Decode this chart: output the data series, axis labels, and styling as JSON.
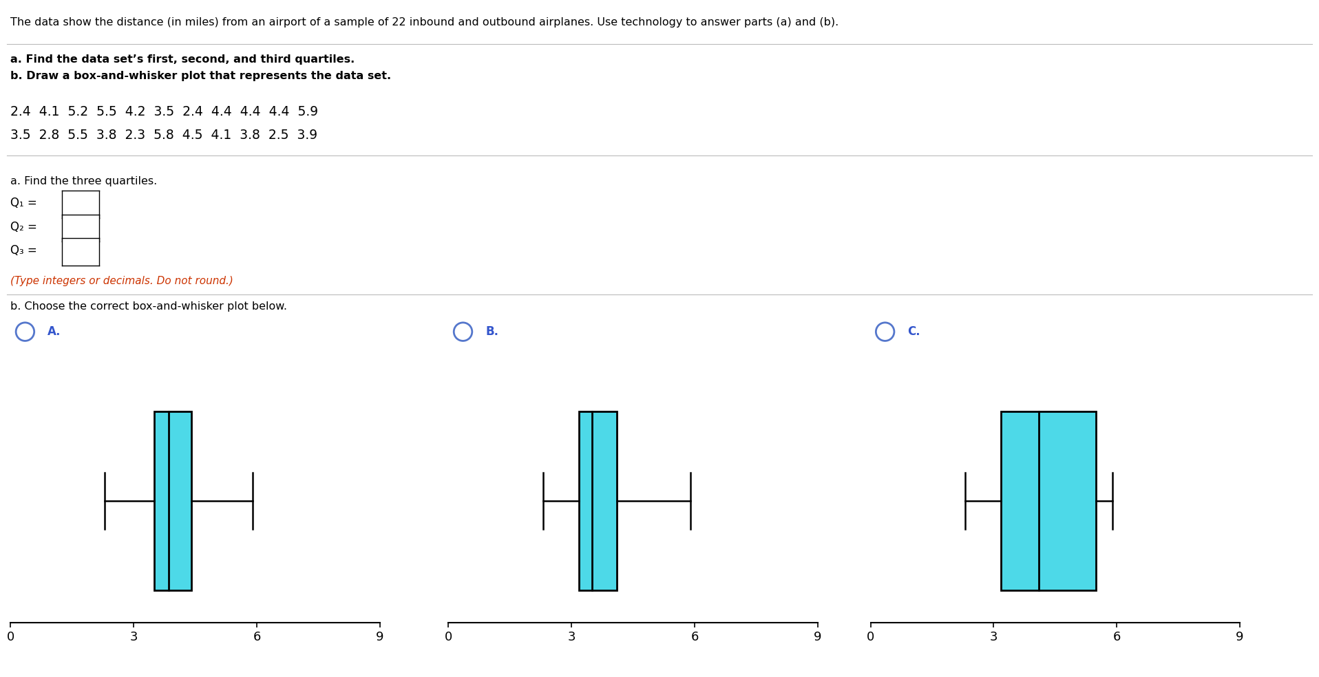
{
  "title_text": "The data show the distance (in miles) from an airport of a sample of 22 inbound and outbound airplanes. Use technology to answer parts (a) and (b).",
  "instruction_a": "a. Find the data set’s first, second, and third quartiles.",
  "instruction_b": "b. Draw a box-and-whisker plot that represents the data set.",
  "data_row1": "2.4  4.1  5.2  5.5  4.2  3.5  2.4  4.4  4.4  4.4  5.9",
  "data_row2": "3.5  2.8  5.5  3.8  2.3  5.8  4.5  4.1  3.8  2.5  3.9",
  "q_labels": [
    "Q₁ =",
    "Q₂ =",
    "Q₃ ="
  ],
  "type_note": "(Type integers or decimals. Do not round.)",
  "part_b_label": "b. Choose the correct box-and-whisker plot below.",
  "find_quartiles_label": "a. Find the three quartiles.",
  "option_labels": [
    "A.",
    "B.",
    "C."
  ],
  "bg_color": "#ffffff",
  "box_fill_color": "#4dd9e8",
  "axis_min": 0,
  "axis_max": 9,
  "axis_ticks": [
    0,
    3,
    6,
    9
  ],
  "plot_A": {
    "min": 2.3,
    "q1": 3.5,
    "median": 3.85,
    "q3": 4.4,
    "max": 5.9
  },
  "plot_B": {
    "min": 2.3,
    "q1": 3.175,
    "median": 3.5,
    "q3": 4.1,
    "max": 5.9
  },
  "plot_C": {
    "min": 2.3,
    "q1": 3.175,
    "median": 4.1,
    "q3": 5.5,
    "max": 5.9
  }
}
